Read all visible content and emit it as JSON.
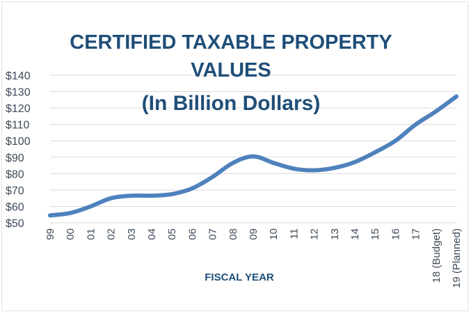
{
  "chart_data": {
    "type": "line",
    "title_lines": [
      "CERTIFIED TAXABLE PROPERTY",
      "VALUES",
      "(In Billion Dollars)"
    ],
    "xlabel": "FISCAL YEAR",
    "ylabel": "",
    "categories": [
      "99",
      "00",
      "01",
      "02",
      "03",
      "04",
      "05",
      "06",
      "07",
      "08",
      "09",
      "10",
      "11",
      "12",
      "13",
      "14",
      "15",
      "16",
      "17",
      "18 (Budget)",
      "19 (Planned)"
    ],
    "y_tick_labels": [
      "$50",
      "$60",
      "$70",
      "$80",
      "$90",
      "$100",
      "$110",
      "$120",
      "$130",
      "$140"
    ],
    "y_ticks": [
      50,
      60,
      70,
      80,
      90,
      100,
      110,
      120,
      130,
      140
    ],
    "ylim": [
      50,
      140
    ],
    "series": [
      {
        "values": [
          54.5,
          56,
          60,
          65,
          66.5,
          66.5,
          67.5,
          71,
          78,
          86.5,
          90.5,
          86.5,
          83,
          82,
          83.5,
          87,
          93,
          100,
          110,
          118,
          127
        ],
        "color": "#4f81bd"
      }
    ],
    "grid": "horizontal",
    "legend": "none"
  }
}
